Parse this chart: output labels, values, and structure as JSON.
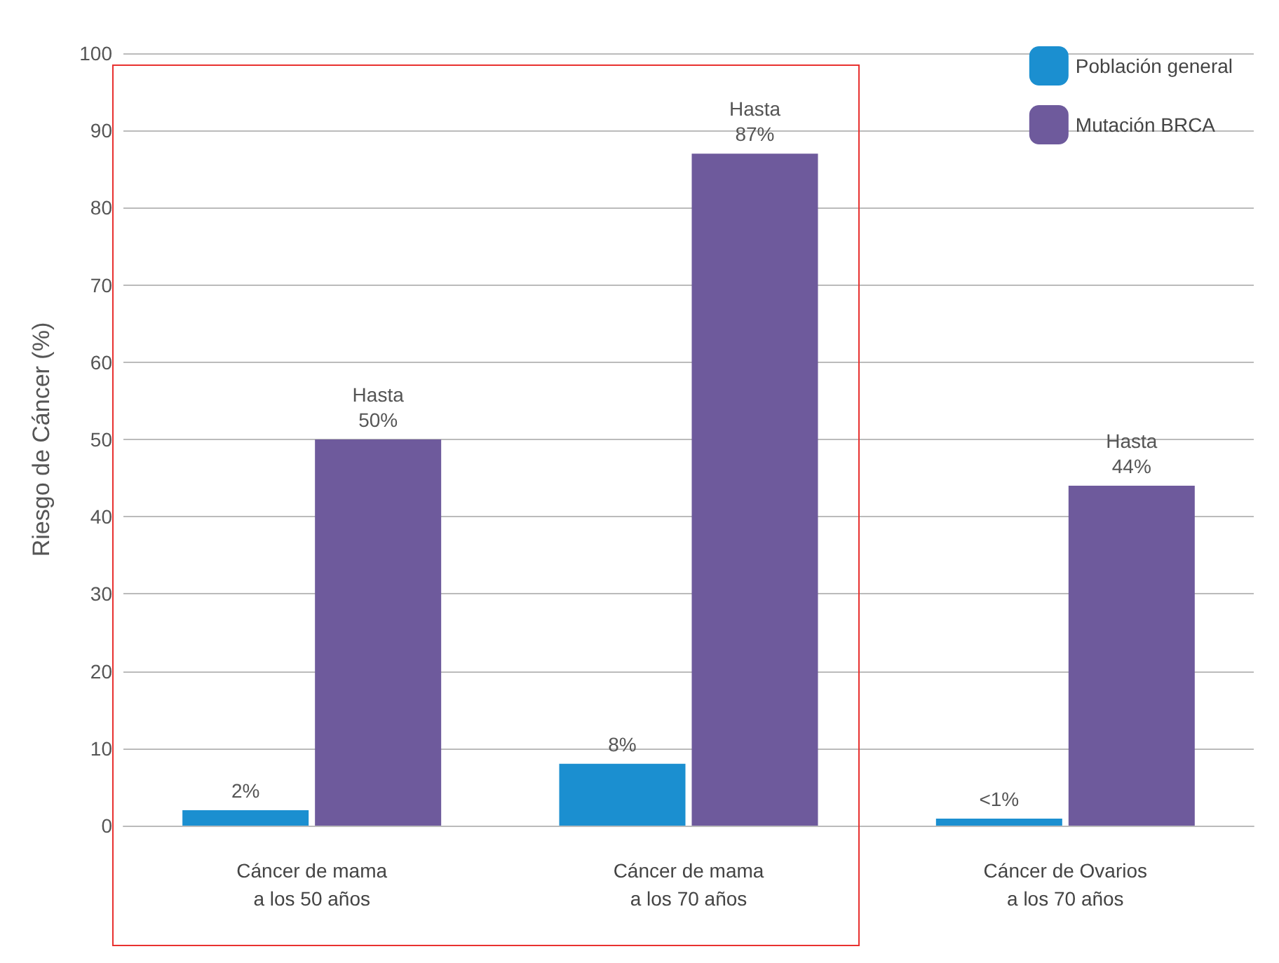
{
  "chart_data": {
    "type": "bar",
    "ylabel": "Riesgo de Cáncer (%)",
    "categories": [
      "Cáncer de mama\na los 50 años",
      "Cáncer de mama\na los 70 años",
      "Cáncer de Ovarios\na los 70 años"
    ],
    "series": [
      {
        "name": "Población general",
        "color": "#1b8fd0",
        "values": [
          2,
          8,
          0.9
        ],
        "value_labels": [
          "2%",
          "8%",
          "<1%"
        ]
      },
      {
        "name": "Mutación BRCA",
        "color": "#6e5a9c",
        "values": [
          50,
          87,
          44
        ],
        "value_labels": [
          "Hasta\n50%",
          "Hasta\n87%",
          "Hasta\n44%"
        ]
      }
    ],
    "ylim": [
      0,
      100
    ],
    "yticks": [
      0,
      10,
      20,
      30,
      40,
      50,
      60,
      70,
      80,
      90,
      100
    ],
    "grid": "y",
    "legend": "top right"
  }
}
